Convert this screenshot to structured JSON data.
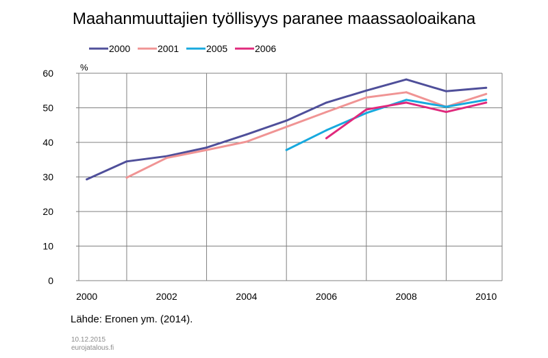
{
  "footer": {
    "date": "10.12.2015",
    "site": "eurojatalous.fi"
  },
  "chart_data": {
    "type": "line",
    "title": "Maahanmuuttajien työllisyys paranee maassaoloaikana",
    "ylabel": "%",
    "xlabel": "",
    "source": "Lähde: Eronen ym. (2014).",
    "xlim": [
      1999.8,
      2010.4
    ],
    "ylim": [
      0,
      60
    ],
    "yticks": [
      0,
      10,
      20,
      30,
      40,
      50,
      60
    ],
    "xticks": [
      2000,
      2002,
      2004,
      2006,
      2008,
      2010
    ],
    "legend_position": "top-left",
    "grid": true,
    "series": [
      {
        "name": "2000",
        "color": "#4f4f9a",
        "x": [
          2000,
          2001,
          2002,
          2003,
          2004,
          2005,
          2006,
          2007,
          2008,
          2009,
          2010
        ],
        "values": [
          29.3,
          34.5,
          36.0,
          38.5,
          42.3,
          46.3,
          51.5,
          55.0,
          58.2,
          54.8,
          55.8
        ]
      },
      {
        "name": "2001",
        "color": "#f09494",
        "x": [
          2001,
          2002,
          2003,
          2004,
          2005,
          2006,
          2007,
          2008,
          2009,
          2010
        ],
        "values": [
          29.8,
          35.5,
          37.8,
          40.2,
          44.5,
          48.8,
          53.0,
          54.5,
          50.3,
          54.0
        ]
      },
      {
        "name": "2005",
        "color": "#17a9de",
        "x": [
          2005,
          2006,
          2007,
          2008,
          2009,
          2010
        ],
        "values": [
          37.8,
          43.5,
          48.5,
          52.3,
          50.3,
          52.3
        ]
      },
      {
        "name": "2006",
        "color": "#e0297c",
        "x": [
          2006,
          2007,
          2008,
          2009,
          2010
        ],
        "values": [
          41.2,
          49.5,
          51.5,
          48.8,
          51.5
        ]
      }
    ]
  }
}
